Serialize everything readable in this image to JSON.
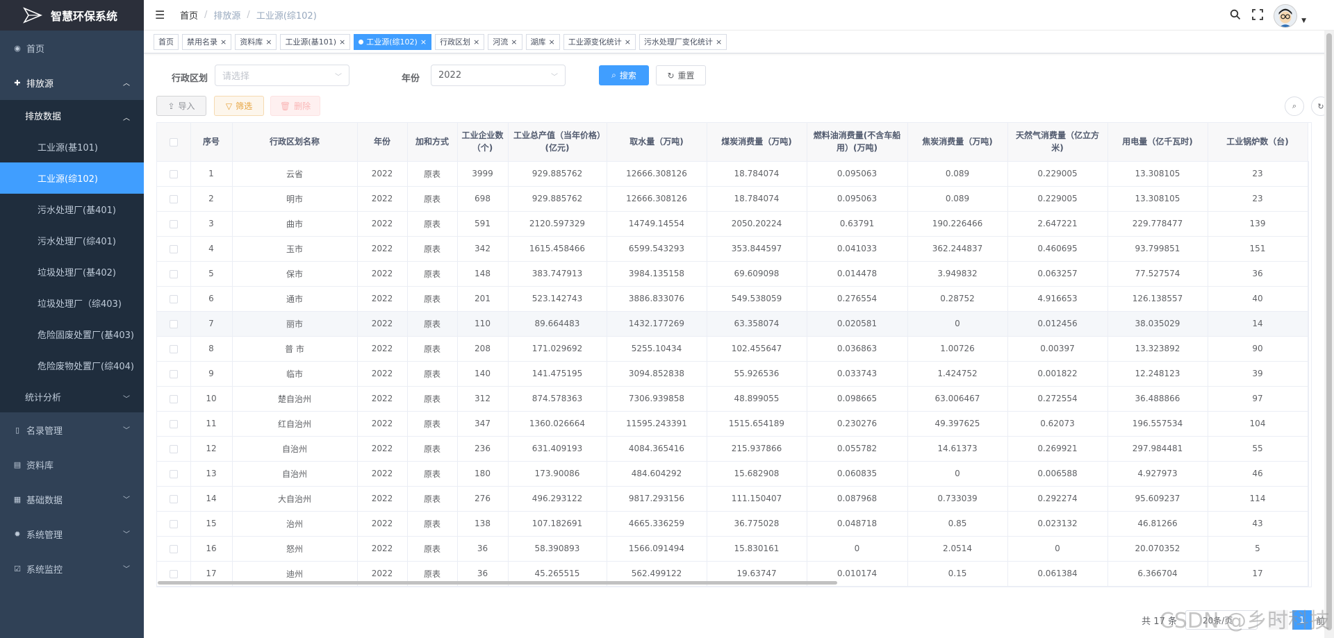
{
  "app": {
    "title": "智慧环保系统"
  },
  "sidebar": {
    "home": "首页",
    "emission": "排放源",
    "emission_data": "排放数据",
    "leaves": [
      "工业源(基101)",
      "工业源(综102)",
      "污水处理厂(基401)",
      "污水处理厂(综401)",
      "垃圾处理厂(基402)",
      "垃圾处理厂（综403)",
      "危险固废处置厂(基403)",
      "危险废物处置厂(综404)"
    ],
    "stats": "统计分析",
    "roster": "名录管理",
    "library": "资料库",
    "basic": "基础数据",
    "system": "系统管理",
    "monitor": "系统监控"
  },
  "breadcrumb": {
    "home": "首页",
    "sep": "/",
    "parent": "排放源",
    "current": "工业源(综102)"
  },
  "tags": [
    "首页",
    "禁用名录",
    "资料库",
    "工业源(基101)",
    "工业源(综102)",
    "行政区划",
    "河流",
    "湖库",
    "工业源变化统计",
    "污水处理厂变化统计"
  ],
  "filter": {
    "region_label": "行政区划",
    "region_placeholder": "请选择",
    "year_label": "年份",
    "year_value": "2022",
    "search": "搜索",
    "reset": "重置"
  },
  "toolbar": {
    "import": "导入",
    "filter": "筛选",
    "delete": "删除"
  },
  "table": {
    "headers": [
      "序号",
      "行政区划名称",
      "年份",
      "加和方式",
      "工业企业数（个)",
      "工业总产值（当年价格）(亿元)",
      "取水量（万吨)",
      "煤炭消费量（万吨)",
      "燃料油消费量(不含车船用）(万吨)",
      "焦炭消费量（万吨)",
      "天然气消费量（亿立方米)",
      "用电量（亿千瓦时)",
      "工业锅炉数（台)"
    ],
    "rows": [
      [
        "1",
        "云省",
        "2022",
        "原表",
        "3999",
        "929.885762",
        "12666.308126",
        "18.784074",
        "0.095063",
        "0.089",
        "0.229005",
        "13.308105",
        "23"
      ],
      [
        "2",
        "明市",
        "2022",
        "原表",
        "698",
        "929.885762",
        "12666.308126",
        "18.784074",
        "0.095063",
        "0.089",
        "0.229005",
        "13.308105",
        "23"
      ],
      [
        "3",
        "曲市",
        "2022",
        "原表",
        "591",
        "2120.597329",
        "14749.14554",
        "2050.20224",
        "0.63791",
        "190.226466",
        "2.647221",
        "229.778477",
        "139"
      ],
      [
        "4",
        "玉市",
        "2022",
        "原表",
        "342",
        "1615.458466",
        "6599.543293",
        "353.844597",
        "0.041033",
        "362.244837",
        "0.460695",
        "93.799851",
        "151"
      ],
      [
        "5",
        "保市",
        "2022",
        "原表",
        "148",
        "383.747913",
        "3984.135158",
        "69.609098",
        "0.014478",
        "3.949832",
        "0.063257",
        "77.527574",
        "36"
      ],
      [
        "6",
        "通市",
        "2022",
        "原表",
        "201",
        "523.142743",
        "3886.833076",
        "549.538059",
        "0.276554",
        "0.28752",
        "4.916653",
        "126.138557",
        "40"
      ],
      [
        "7",
        "丽市",
        "2022",
        "原表",
        "110",
        "89.664483",
        "1432.177269",
        "63.358074",
        "0.020581",
        "0",
        "0.012456",
        "38.035029",
        "14"
      ],
      [
        "8",
        "普 市",
        "2022",
        "原表",
        "208",
        "171.029692",
        "5255.10434",
        "102.455647",
        "0.036863",
        "1.00726",
        "0.00397",
        "13.323892",
        "90"
      ],
      [
        "9",
        "临市",
        "2022",
        "原表",
        "140",
        "141.475195",
        "3094.852838",
        "55.926536",
        "0.033743",
        "1.424752",
        "0.001822",
        "12.248123",
        "39"
      ],
      [
        "10",
        "楚自治州",
        "2022",
        "原表",
        "312",
        "874.578363",
        "7306.939858",
        "48.899055",
        "0.098665",
        "63.006467",
        "0.272554",
        "36.488866",
        "97"
      ],
      [
        "11",
        "红自治州",
        "2022",
        "原表",
        "347",
        "1360.026664",
        "11595.243391",
        "1515.654189",
        "0.230276",
        "49.397625",
        "0.62073",
        "196.557534",
        "104"
      ],
      [
        "12",
        "自治州",
        "2022",
        "原表",
        "236",
        "631.409193",
        "4084.365416",
        "215.937866",
        "0.055782",
        "14.61373",
        "0.269921",
        "297.984481",
        "55"
      ],
      [
        "13",
        "自治州",
        "2022",
        "原表",
        "180",
        "173.90086",
        "484.604292",
        "15.682908",
        "0.060835",
        "0",
        "0.006588",
        "4.927973",
        "46"
      ],
      [
        "14",
        "大自治州",
        "2022",
        "原表",
        "276",
        "496.293122",
        "9817.293156",
        "111.150407",
        "0.087968",
        "0.733039",
        "0.292274",
        "95.609237",
        "114"
      ],
      [
        "15",
        "治州",
        "2022",
        "原表",
        "138",
        "107.182691",
        "4665.336259",
        "36.775028",
        "0.048718",
        "0.85",
        "0.023132",
        "46.81266",
        "43"
      ],
      [
        "16",
        "怒州",
        "2022",
        "原表",
        "36",
        "58.390893",
        "1566.091494",
        "15.830161",
        "0",
        "2.0514",
        "0",
        "20.070352",
        "5"
      ],
      [
        "17",
        "迪州",
        "2022",
        "原表",
        "36",
        "45.265515",
        "562.499122",
        "19.63747",
        "0.010174",
        "0.15",
        "0.061384",
        "6.366704",
        "17"
      ]
    ]
  },
  "pagination": {
    "total": "共 17 条",
    "page_size": "20条/页",
    "current": "1",
    "prev": "<",
    "goto": "前往"
  },
  "watermark": "CSDN @乡时科技"
}
